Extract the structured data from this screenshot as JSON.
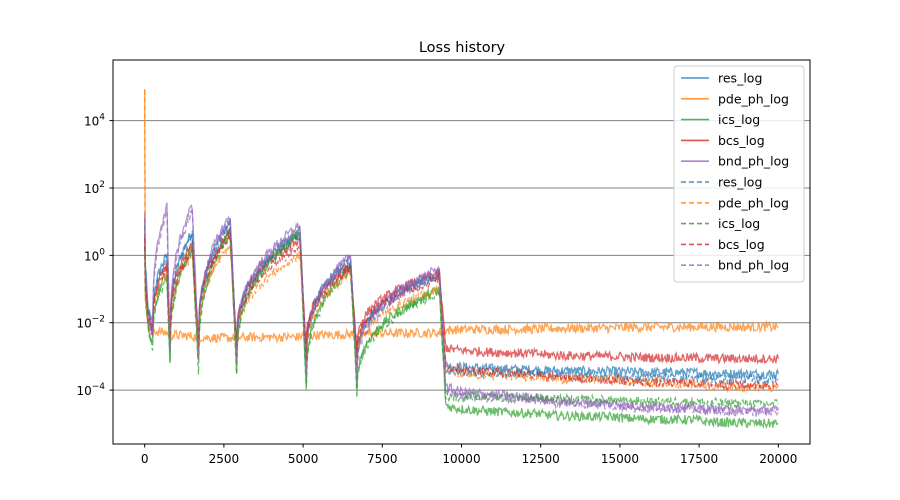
{
  "chart_data": {
    "type": "line",
    "title": "Loss history",
    "xlabel": "",
    "ylabel": "",
    "xlim": [
      -1000,
      21000
    ],
    "ylim_log10": [
      -5.6,
      5.8
    ],
    "y_scale": "log",
    "x_ticks": [
      0,
      2500,
      5000,
      7500,
      10000,
      12500,
      15000,
      17500,
      20000
    ],
    "x_tick_labels": [
      "0",
      "2500",
      "5000",
      "7500",
      "10000",
      "12500",
      "15000",
      "17500",
      "20000"
    ],
    "y_ticks_log10": [
      -4,
      -2,
      0,
      2,
      4
    ],
    "y_tick_labels": [
      {
        "base": "10",
        "exp": "−4"
      },
      {
        "base": "10",
        "exp": "−2"
      },
      {
        "base": "10",
        "exp": "0"
      },
      {
        "base": "10",
        "exp": "2"
      },
      {
        "base": "10",
        "exp": "4"
      }
    ],
    "grid": "horizontal",
    "legend_position": "top-right",
    "spike_steps": [
      0,
      700,
      1500,
      2200,
      2700,
      3900,
      4900,
      6500,
      9300
    ],
    "series": [
      {
        "name": "res_log",
        "color": "#1f77b4",
        "style": "solid",
        "x": [
          0,
          20,
          100,
          250,
          700,
          800,
          1500,
          1700,
          2700,
          2900,
          4900,
          5100,
          6500,
          6700,
          9300,
          9500,
          12500,
          15000,
          17500,
          20000
        ],
        "y": [
          10,
          0.5,
          0.03,
          0.008,
          1,
          0.003,
          5,
          0.002,
          10,
          0.0015,
          5,
          0.0008,
          0.8,
          0.0006,
          0.3,
          0.0006,
          0.0004,
          0.00036,
          0.00033,
          0.0003
        ]
      },
      {
        "name": "pde_ph_log",
        "color": "#ff7f0e",
        "style": "solid",
        "x": [
          0,
          20,
          100,
          700,
          1500,
          2700,
          4900,
          6500,
          9300,
          9600,
          12500,
          15000,
          17500,
          20000
        ],
        "y": [
          100000,
          0.1,
          0.008,
          0.005,
          0.004,
          0.0035,
          0.0038,
          0.0045,
          0.005,
          0.006,
          0.0065,
          0.007,
          0.0075,
          0.0075
        ]
      },
      {
        "name": "ics_log",
        "color": "#2ca02c",
        "style": "solid",
        "x": [
          0,
          20,
          100,
          250,
          700,
          800,
          1500,
          1700,
          2700,
          2900,
          4900,
          5100,
          6500,
          6700,
          9300,
          9500,
          12500,
          15000,
          17500,
          20000
        ],
        "y": [
          2,
          0.1,
          0.01,
          0.002,
          0.3,
          0.0008,
          2,
          0.0006,
          5,
          0.0004,
          5,
          0.0001,
          0.5,
          8e-05,
          0.1,
          4e-05,
          2e-05,
          1.6e-05,
          1.3e-05,
          1e-05
        ]
      },
      {
        "name": "bcs_log",
        "color": "#d62728",
        "style": "solid",
        "x": [
          0,
          20,
          100,
          250,
          700,
          800,
          1500,
          1700,
          2700,
          2900,
          4900,
          5100,
          6500,
          6700,
          9300,
          9500,
          12500,
          15000,
          17500,
          20000
        ],
        "y": [
          5,
          0.3,
          0.02,
          0.006,
          0.5,
          0.004,
          2,
          0.003,
          5,
          0.002,
          3,
          0.0015,
          0.5,
          0.0015,
          0.3,
          0.002,
          0.0012,
          0.001,
          0.0009,
          0.00085
        ]
      },
      {
        "name": "bnd_ph_log",
        "color": "#9467bd",
        "style": "solid",
        "x": [
          0,
          20,
          100,
          250,
          700,
          800,
          1500,
          1700,
          2700,
          2900,
          4900,
          5100,
          6500,
          6700,
          9300,
          9500,
          12500,
          15000,
          17500,
          20000
        ],
        "y": [
          20,
          0.5,
          0.02,
          0.005,
          30,
          0.002,
          30,
          0.0015,
          15,
          0.001,
          8,
          0.0004,
          1,
          0.0003,
          0.4,
          0.00015,
          6e-05,
          4e-05,
          3e-05,
          2.5e-05
        ]
      },
      {
        "name": "res_log",
        "color": "#1f77b4",
        "style": "dashed",
        "x": [
          0,
          20,
          100,
          250,
          700,
          800,
          1500,
          1700,
          2700,
          2900,
          4900,
          5100,
          6500,
          6700,
          9300,
          9500,
          12500,
          15000,
          17500,
          20000
        ],
        "y": [
          8,
          0.4,
          0.025,
          0.006,
          0.8,
          0.0025,
          4,
          0.0015,
          8,
          0.0012,
          4,
          0.0006,
          0.6,
          0.0005,
          0.25,
          0.0004,
          0.0003,
          0.00025,
          0.00022,
          0.0002
        ]
      },
      {
        "name": "pde_ph_log",
        "color": "#ff7f0e",
        "style": "dashed",
        "x": [
          0,
          20,
          100,
          250,
          700,
          800,
          1500,
          1700,
          2700,
          2900,
          4900,
          5100,
          6500,
          6700,
          9300,
          9500,
          12500,
          15000,
          17500,
          20000
        ],
        "y": [
          100000,
          0.05,
          0.01,
          0.004,
          0.3,
          0.002,
          1,
          0.0015,
          2,
          0.001,
          1,
          0.0006,
          0.3,
          0.0005,
          0.1,
          0.0004,
          0.00025,
          0.0002,
          0.00015,
          0.00012
        ]
      },
      {
        "name": "ics_log",
        "color": "#2ca02c",
        "style": "dashed",
        "x": [
          0,
          20,
          100,
          250,
          700,
          800,
          1500,
          1700,
          2700,
          2900,
          4900,
          5100,
          6500,
          6700,
          9300,
          9500,
          12500,
          15000,
          17500,
          20000
        ],
        "y": [
          1.5,
          0.08,
          0.008,
          0.0015,
          0.2,
          0.0006,
          1.5,
          0.0004,
          4,
          0.0003,
          4,
          8e-05,
          0.4,
          7e-05,
          0.08,
          7e-05,
          6e-05,
          5e-05,
          4.5e-05,
          4e-05
        ]
      },
      {
        "name": "bcs_log",
        "color": "#d62728",
        "style": "dashed",
        "x": [
          0,
          20,
          100,
          250,
          700,
          800,
          1500,
          1700,
          2700,
          2900,
          4900,
          5100,
          6500,
          6700,
          9300,
          9500,
          12500,
          15000,
          17500,
          20000
        ],
        "y": [
          4,
          0.2,
          0.015,
          0.005,
          0.4,
          0.003,
          1.5,
          0.002,
          4,
          0.0015,
          2,
          0.001,
          0.4,
          0.001,
          0.2,
          0.0006,
          0.0003,
          0.0002,
          0.00016,
          0.00014
        ]
      },
      {
        "name": "bnd_ph_log",
        "color": "#9467bd",
        "style": "dashed",
        "x": [
          0,
          20,
          100,
          250,
          700,
          800,
          1500,
          1700,
          2700,
          2900,
          4900,
          5100,
          6500,
          6700,
          9300,
          9500,
          12500,
          15000,
          17500,
          20000
        ],
        "y": [
          15,
          0.4,
          0.015,
          0.004,
          20,
          0.0015,
          20,
          0.001,
          10,
          0.0008,
          6,
          0.0003,
          0.8,
          0.0002,
          0.3,
          0.0001,
          5e-05,
          3.5e-05,
          2.8e-05,
          2.2e-05
        ]
      }
    ]
  }
}
